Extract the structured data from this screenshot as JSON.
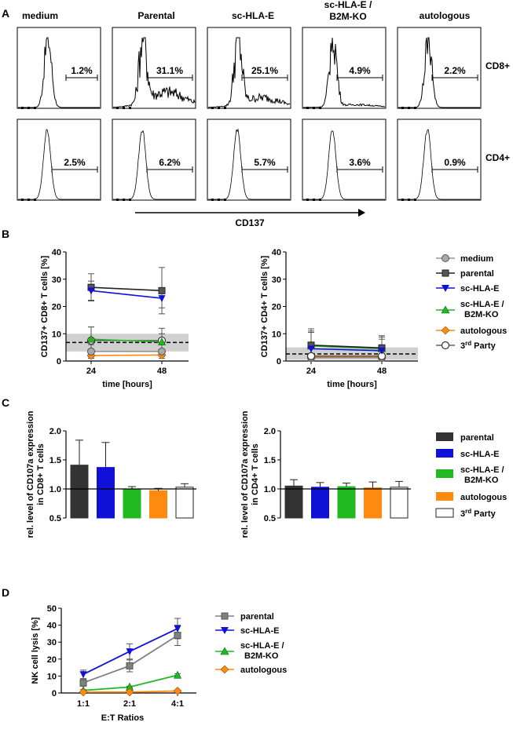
{
  "colors": {
    "black": "#222222",
    "dark": "#333333",
    "grey": "#808080",
    "blue": "#1010d8",
    "green": "#22b822",
    "orange": "#ff8a10",
    "shade": "#d0d0d0"
  },
  "panelA": {
    "label": "A",
    "columns": [
      "medium",
      "Parental",
      "sc-HLA-E",
      "sc-HLA-E /",
      "B2M-KO",
      "autologous"
    ],
    "rows": [
      "CD8+",
      "CD4+"
    ],
    "cd8": [
      "1.2%",
      "31.1%",
      "25.1%",
      "4.9%",
      "2.2%"
    ],
    "cd4": [
      "2.5%",
      "6.2%",
      "5.7%",
      "3.6%",
      "0.9%"
    ],
    "xaxis": "CD137"
  },
  "panelB": {
    "label": "B",
    "legend": [
      "medium",
      "parental",
      "sc-HLA-E",
      "sc-HLA-E /",
      "B2M-KO",
      "autologous",
      "3",
      "rd",
      " Party"
    ],
    "chart_data": [
      {
        "type": "line",
        "ylabel": "CD137+ CD8+ T cells [%]",
        "xlabel": "time [hours]",
        "x": [
          24,
          48
        ],
        "ylim": [
          0,
          40
        ],
        "yticks": [
          0,
          10,
          20,
          30,
          40
        ],
        "baseline": 6.8,
        "band": [
          3.5,
          10
        ],
        "series": [
          {
            "name": "medium",
            "values": [
              3.5,
              3.5
            ],
            "err": [
              2.5,
              2.5
            ]
          },
          {
            "name": "parental",
            "values": [
              27,
              25.8
            ],
            "err": [
              5,
              8.5
            ]
          },
          {
            "name": "sc-HLA-E",
            "values": [
              25.8,
              23
            ],
            "err": [
              3.5,
              3.5
            ]
          },
          {
            "name": "sc-HLA-E / B2M-KO",
            "values": [
              8,
              7
            ],
            "err": [
              4.5,
              3
            ]
          },
          {
            "name": "autologous",
            "values": [
              2,
              2.2
            ],
            "err": [
              0.5,
              0.5
            ]
          },
          {
            "name": "3rd Party",
            "values": [
              7.5,
              7.5
            ],
            "err": [
              5,
              4.5
            ]
          }
        ]
      },
      {
        "type": "line",
        "ylabel": "CD137+ CD4+ T cells [%]",
        "xlabel": "time [hours]",
        "x": [
          24,
          48
        ],
        "ylim": [
          0,
          40
        ],
        "yticks": [
          0,
          10,
          20,
          30,
          40
        ],
        "baseline": 2.6,
        "band": [
          0.5,
          5
        ],
        "series": [
          {
            "name": "medium",
            "values": [
              1.2,
              1.2
            ],
            "err": [
              0.8,
              0.8
            ]
          },
          {
            "name": "parental",
            "values": [
              5.8,
              4.8
            ],
            "err": [
              6,
              4
            ]
          },
          {
            "name": "sc-HLA-E",
            "values": [
              4.5,
              3.8
            ],
            "err": [
              6.5,
              5.5
            ]
          },
          {
            "name": "sc-HLA-E / B2M-KO",
            "values": [
              5.5,
              4.5
            ],
            "err": [
              5,
              3.5
            ]
          },
          {
            "name": "autologous",
            "values": [
              1.5,
              1.5
            ],
            "err": [
              0.5,
              0.5
            ]
          },
          {
            "name": "3rd Party",
            "values": [
              1.8,
              1.8
            ],
            "err": [
              3,
              3
            ]
          }
        ]
      }
    ]
  },
  "panelC": {
    "label": "C",
    "legend": [
      "parental",
      "sc-HLA-E",
      "sc-HLA-E /",
      "B2M-KO",
      "autologous",
      "3",
      "rd",
      " Party"
    ],
    "chart_data": [
      {
        "type": "bar",
        "ylabel1": "rel. level of CD107a expression",
        "ylabel2": "in CD8+ T cells",
        "ylim": [
          0.5,
          2.0
        ],
        "yticks": [
          "0.5",
          "1.0",
          "1.5",
          "2.0"
        ],
        "reference": 1.0,
        "categories": [
          "parental",
          "sc-HLA-E",
          "sc-HLA-E / B2M-KO",
          "autologous",
          "3rd Party"
        ],
        "values": [
          1.41,
          1.37,
          0.99,
          0.97,
          1.03
        ],
        "err": [
          0.43,
          0.43,
          0.05,
          0.04,
          0.06
        ]
      },
      {
        "type": "bar",
        "ylabel1": "rel. level of CD107a expression",
        "ylabel2": "in CD4+ T cells",
        "ylim": [
          0.5,
          2.0
        ],
        "yticks": [
          "0.5",
          "1.0",
          "1.5",
          "2.0"
        ],
        "reference": 1.0,
        "categories": [
          "parental",
          "sc-HLA-E",
          "sc-HLA-E / B2M-KO",
          "autologous",
          "3rd Party"
        ],
        "values": [
          1.05,
          1.03,
          1.04,
          1.02,
          1.03
        ],
        "err": [
          0.11,
          0.08,
          0.06,
          0.1,
          0.1
        ]
      }
    ]
  },
  "panelD": {
    "label": "D",
    "legend": [
      "parental",
      "sc-HLA-E",
      "sc-HLA-E /",
      "B2M-KO",
      "autologous"
    ],
    "chart_data": {
      "type": "line",
      "ylabel": "NK cell lysis [%]",
      "xlabel": "E:T Ratios",
      "categories": [
        "1:1",
        "2:1",
        "4:1"
      ],
      "ylim": [
        0,
        50
      ],
      "yticks": [
        0,
        10,
        20,
        30,
        40,
        50
      ],
      "series": [
        {
          "name": "parental",
          "values": [
            6,
            16,
            34
          ],
          "err": [
            2,
            3.5,
            6
          ]
        },
        {
          "name": "sc-HLA-E",
          "values": [
            11,
            24.5,
            38
          ],
          "err": [
            2.5,
            4.5,
            6
          ]
        },
        {
          "name": "sc-HLA-E / B2M-KO",
          "values": [
            1.5,
            3.5,
            10.5
          ],
          "err": [
            0.5,
            0.5,
            0.8
          ]
        },
        {
          "name": "autologous",
          "values": [
            0.5,
            0.5,
            1.2
          ],
          "err": [
            0.3,
            0.3,
            0.3
          ]
        }
      ]
    }
  }
}
